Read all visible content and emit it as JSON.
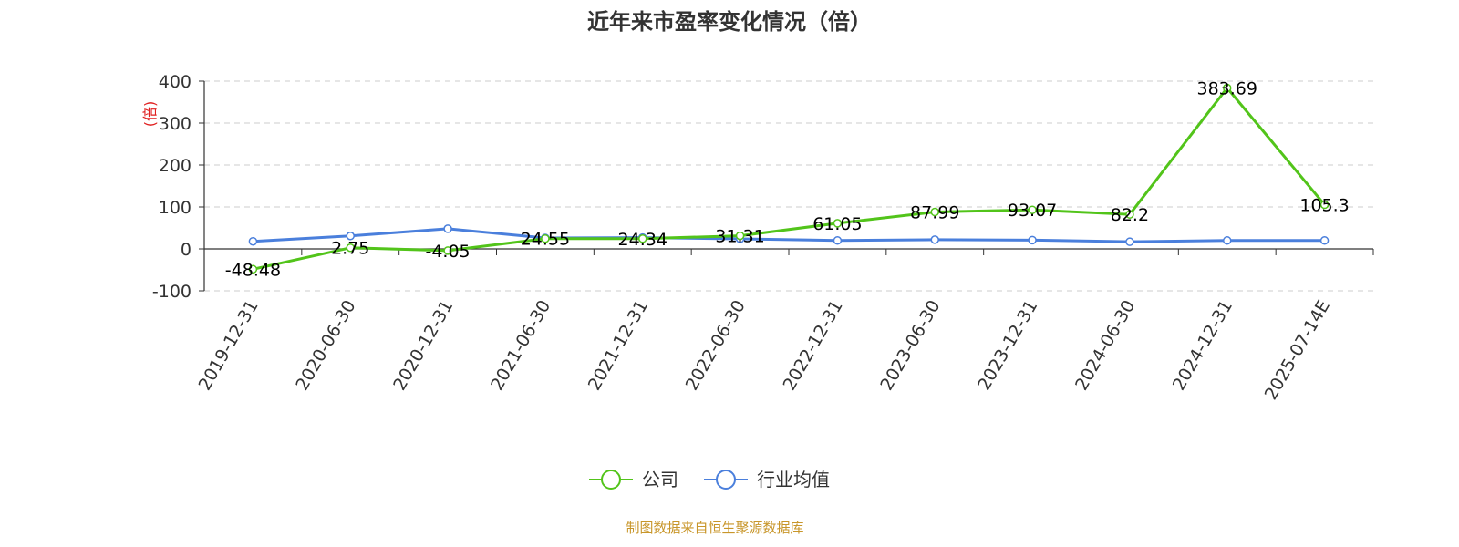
{
  "chart_data": {
    "type": "line",
    "title": "近年来市盈率变化情况（倍）",
    "ylabel": "(倍)",
    "xlabel": "",
    "categories": [
      "2019-12-31",
      "2020-06-30",
      "2020-12-31",
      "2021-06-30",
      "2021-12-31",
      "2022-06-30",
      "2022-12-31",
      "2023-06-30",
      "2023-12-31",
      "2024-06-30",
      "2024-12-31",
      "2025-07-14E"
    ],
    "ylim": [
      -100,
      400
    ],
    "yticks": [
      "400",
      "300",
      "200",
      "100",
      "0",
      "-100"
    ],
    "ytick_values": [
      400,
      300,
      200,
      100,
      0,
      -100
    ],
    "grid": true,
    "legend_position": "bottom-center",
    "series": [
      {
        "name": "公司",
        "color": "#52c41a",
        "values": [
          -48.48,
          2.75,
          -4.05,
          24.55,
          24.34,
          31.31,
          61.05,
          87.99,
          93.07,
          82.2,
          383.69,
          105.3
        ],
        "labels": [
          "-48.48",
          "2.75",
          "-4.05",
          "24.55",
          "24.34",
          "31.31",
          "61.05",
          "87.99",
          "93.07",
          "82.2",
          "383.69",
          "105.3"
        ]
      },
      {
        "name": "行业均值",
        "color": "#4a7fdc",
        "values": [
          18,
          31,
          48,
          26,
          27,
          24,
          20,
          22,
          21,
          17,
          20,
          20
        ]
      }
    ]
  },
  "source": "制图数据来自恒生聚源数据库",
  "colors": {
    "unit_label": "#e02020",
    "source_text": "#c8962a",
    "grid": "#cccccc",
    "axis": "#333333"
  }
}
